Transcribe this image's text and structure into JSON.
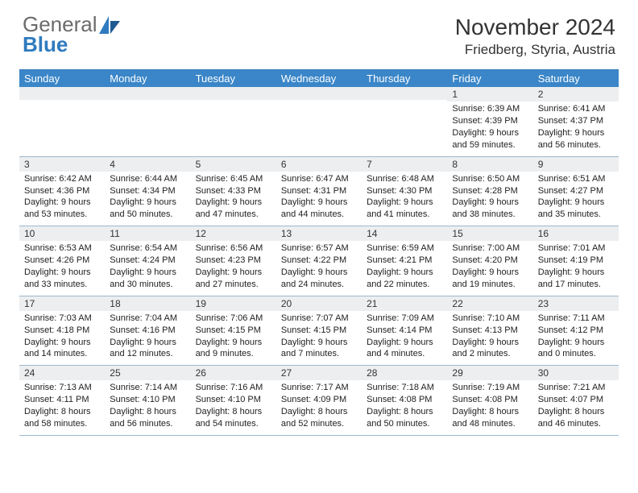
{
  "brand": {
    "word1": "General",
    "word2": "Blue"
  },
  "title": "November 2024",
  "location": "Friedberg, Styria, Austria",
  "colors": {
    "header_bg": "#3a86c8",
    "header_text": "#ffffff",
    "border": "#9db8cc",
    "shade": "#eceef0",
    "accent": "#2f7bbf",
    "logo_gray": "#6b6b6b"
  },
  "day_names": [
    "Sunday",
    "Monday",
    "Tuesday",
    "Wednesday",
    "Thursday",
    "Friday",
    "Saturday"
  ],
  "weeks": [
    [
      null,
      null,
      null,
      null,
      null,
      {
        "n": "1",
        "sr": "6:39 AM",
        "ss": "4:39 PM",
        "dl": "9 hours and 59 minutes."
      },
      {
        "n": "2",
        "sr": "6:41 AM",
        "ss": "4:37 PM",
        "dl": "9 hours and 56 minutes."
      }
    ],
    [
      {
        "n": "3",
        "sr": "6:42 AM",
        "ss": "4:36 PM",
        "dl": "9 hours and 53 minutes."
      },
      {
        "n": "4",
        "sr": "6:44 AM",
        "ss": "4:34 PM",
        "dl": "9 hours and 50 minutes."
      },
      {
        "n": "5",
        "sr": "6:45 AM",
        "ss": "4:33 PM",
        "dl": "9 hours and 47 minutes."
      },
      {
        "n": "6",
        "sr": "6:47 AM",
        "ss": "4:31 PM",
        "dl": "9 hours and 44 minutes."
      },
      {
        "n": "7",
        "sr": "6:48 AM",
        "ss": "4:30 PM",
        "dl": "9 hours and 41 minutes."
      },
      {
        "n": "8",
        "sr": "6:50 AM",
        "ss": "4:28 PM",
        "dl": "9 hours and 38 minutes."
      },
      {
        "n": "9",
        "sr": "6:51 AM",
        "ss": "4:27 PM",
        "dl": "9 hours and 35 minutes."
      }
    ],
    [
      {
        "n": "10",
        "sr": "6:53 AM",
        "ss": "4:26 PM",
        "dl": "9 hours and 33 minutes."
      },
      {
        "n": "11",
        "sr": "6:54 AM",
        "ss": "4:24 PM",
        "dl": "9 hours and 30 minutes."
      },
      {
        "n": "12",
        "sr": "6:56 AM",
        "ss": "4:23 PM",
        "dl": "9 hours and 27 minutes."
      },
      {
        "n": "13",
        "sr": "6:57 AM",
        "ss": "4:22 PM",
        "dl": "9 hours and 24 minutes."
      },
      {
        "n": "14",
        "sr": "6:59 AM",
        "ss": "4:21 PM",
        "dl": "9 hours and 22 minutes."
      },
      {
        "n": "15",
        "sr": "7:00 AM",
        "ss": "4:20 PM",
        "dl": "9 hours and 19 minutes."
      },
      {
        "n": "16",
        "sr": "7:01 AM",
        "ss": "4:19 PM",
        "dl": "9 hours and 17 minutes."
      }
    ],
    [
      {
        "n": "17",
        "sr": "7:03 AM",
        "ss": "4:18 PM",
        "dl": "9 hours and 14 minutes."
      },
      {
        "n": "18",
        "sr": "7:04 AM",
        "ss": "4:16 PM",
        "dl": "9 hours and 12 minutes."
      },
      {
        "n": "19",
        "sr": "7:06 AM",
        "ss": "4:15 PM",
        "dl": "9 hours and 9 minutes."
      },
      {
        "n": "20",
        "sr": "7:07 AM",
        "ss": "4:15 PM",
        "dl": "9 hours and 7 minutes."
      },
      {
        "n": "21",
        "sr": "7:09 AM",
        "ss": "4:14 PM",
        "dl": "9 hours and 4 minutes."
      },
      {
        "n": "22",
        "sr": "7:10 AM",
        "ss": "4:13 PM",
        "dl": "9 hours and 2 minutes."
      },
      {
        "n": "23",
        "sr": "7:11 AM",
        "ss": "4:12 PM",
        "dl": "9 hours and 0 minutes."
      }
    ],
    [
      {
        "n": "24",
        "sr": "7:13 AM",
        "ss": "4:11 PM",
        "dl": "8 hours and 58 minutes."
      },
      {
        "n": "25",
        "sr": "7:14 AM",
        "ss": "4:10 PM",
        "dl": "8 hours and 56 minutes."
      },
      {
        "n": "26",
        "sr": "7:16 AM",
        "ss": "4:10 PM",
        "dl": "8 hours and 54 minutes."
      },
      {
        "n": "27",
        "sr": "7:17 AM",
        "ss": "4:09 PM",
        "dl": "8 hours and 52 minutes."
      },
      {
        "n": "28",
        "sr": "7:18 AM",
        "ss": "4:08 PM",
        "dl": "8 hours and 50 minutes."
      },
      {
        "n": "29",
        "sr": "7:19 AM",
        "ss": "4:08 PM",
        "dl": "8 hours and 48 minutes."
      },
      {
        "n": "30",
        "sr": "7:21 AM",
        "ss": "4:07 PM",
        "dl": "8 hours and 46 minutes."
      }
    ]
  ],
  "labels": {
    "sunrise": "Sunrise:",
    "sunset": "Sunset:",
    "daylight": "Daylight:"
  }
}
